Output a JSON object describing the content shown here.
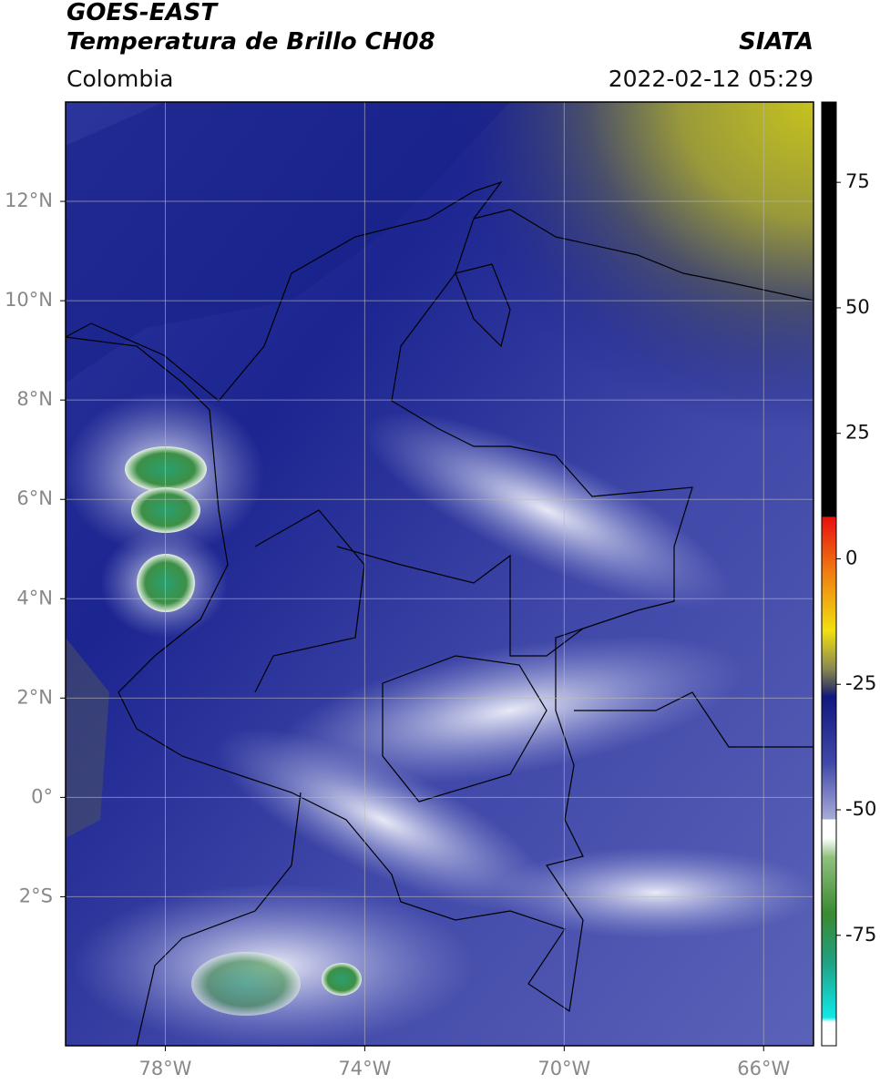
{
  "header": {
    "title": "GOES-EAST",
    "subtitle": "Temperatura de Brillo CH08",
    "source": "SIATA",
    "region": "Colombia",
    "datetime": "2022-02-12 05:29"
  },
  "map": {
    "lonlim": [
      -80,
      -65
    ],
    "latlim": [
      -5,
      14
    ],
    "lonticks": [
      {
        "value": -78,
        "label": "78°W"
      },
      {
        "value": -74,
        "label": "74°W"
      },
      {
        "value": -70,
        "label": "70°W"
      },
      {
        "value": -66,
        "label": "66°W"
      }
    ],
    "latticks": [
      {
        "value": 12,
        "label": "12°N"
      },
      {
        "value": 10,
        "label": "10°N"
      },
      {
        "value": 8,
        "label": "8°N"
      },
      {
        "value": 6,
        "label": "6°N"
      },
      {
        "value": 4,
        "label": "4°N"
      },
      {
        "value": 2,
        "label": "2°N"
      },
      {
        "value": 0,
        "label": "0°"
      },
      {
        "value": -2,
        "label": "2°S"
      }
    ],
    "grid": true
  },
  "colorbar": {
    "lim": [
      -97,
      91
    ],
    "ticks": [
      75,
      50,
      25,
      0,
      -25,
      -50,
      -75
    ]
  }
}
